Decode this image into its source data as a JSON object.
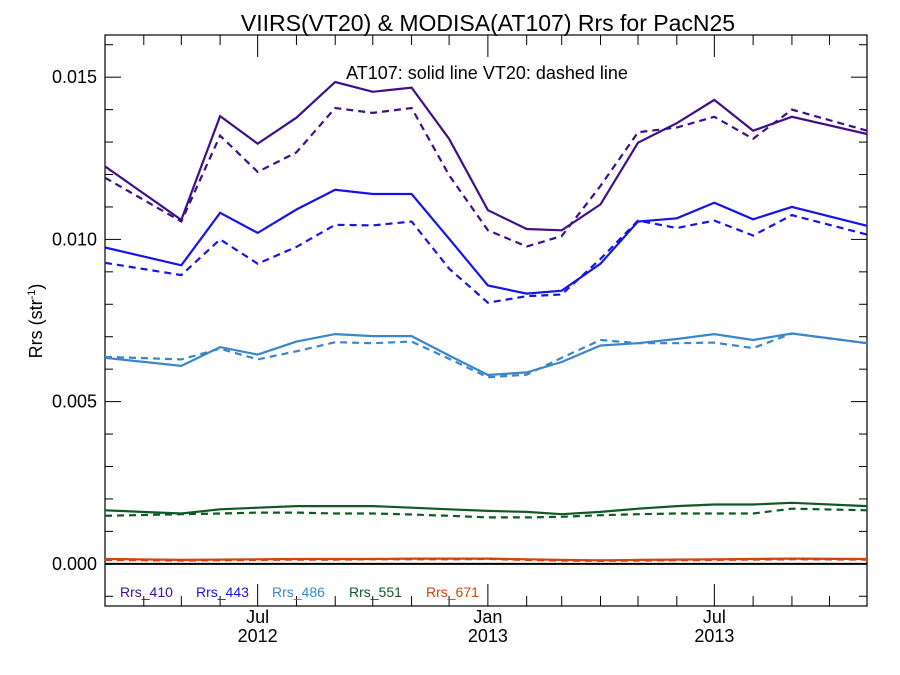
{
  "chart_data": {
    "type": "line",
    "title": "VIIRS(VT20) & MODISA(AT107)  Rrs for PacN25",
    "annotation": "AT107: solid line   VT20: dashed line",
    "xlabel": "",
    "ylabel_main": "Rrs (str",
    "ylabel_sup": "-1",
    "ylabel_close": ")",
    "ylim": [
      -0.0013,
      0.0163
    ],
    "y_ticks": [
      0.0,
      0.005,
      0.01,
      0.015
    ],
    "y_tick_labels": [
      "0.000",
      "0.005",
      "0.010",
      "0.015"
    ],
    "x_domain": [
      "2012-03-01",
      "2013-10-31"
    ],
    "x_major_ticks": [
      {
        "date": "2012-07-01",
        "label_top": "Jul",
        "label_bottom": "2012"
      },
      {
        "date": "2013-01-01",
        "label_top": "Jan",
        "label_bottom": "2013"
      },
      {
        "date": "2013-07-01",
        "label_top": "Jul",
        "label_bottom": "2013"
      }
    ],
    "x_minor_ticks": [
      "2012-04-01",
      "2012-05-01",
      "2012-06-01",
      "2012-08-01",
      "2012-09-01",
      "2012-10-01",
      "2012-11-01",
      "2012-12-01",
      "2013-02-01",
      "2013-03-01",
      "2013-04-01",
      "2013-05-01",
      "2013-06-01",
      "2013-08-01",
      "2013-09-01",
      "2013-10-01"
    ],
    "solid_style": "AT107 (MODISA)",
    "dashed_style": "VT20 (VIIRS)",
    "series": [
      {
        "name": "Rrs_410",
        "color": "#3f0f87",
        "x": [
          "2012-03-01",
          "2012-05-01",
          "2012-06-01",
          "2012-07-01",
          "2012-08-01",
          "2012-09-01",
          "2012-10-01",
          "2012-11-01",
          "2012-12-01",
          "2013-01-01",
          "2013-02-01",
          "2013-03-01",
          "2013-04-01",
          "2013-05-01",
          "2013-06-01",
          "2013-07-01",
          "2013-08-01",
          "2013-09-01",
          "2013-10-31"
        ],
        "solid": [
          0.01225,
          0.0106,
          0.0138,
          0.01295,
          0.01375,
          0.01485,
          0.01455,
          0.01468,
          0.0131,
          0.0109,
          0.01032,
          0.01028,
          0.01108,
          0.01298,
          0.01358,
          0.0143,
          0.01335,
          0.01378,
          0.01325
        ],
        "dashed": [
          0.0119,
          0.01055,
          0.0132,
          0.01208,
          0.01268,
          0.01405,
          0.0139,
          0.01405,
          0.01198,
          0.01028,
          0.00978,
          0.0101,
          0.01165,
          0.0133,
          0.01345,
          0.01378,
          0.0131,
          0.014,
          0.01335
        ]
      },
      {
        "name": "Rrs_443",
        "color": "#1515e8",
        "x": [
          "2012-03-01",
          "2012-05-01",
          "2012-06-01",
          "2012-07-01",
          "2012-08-01",
          "2012-09-01",
          "2012-10-01",
          "2012-11-01",
          "2012-12-01",
          "2013-01-01",
          "2013-02-01",
          "2013-03-01",
          "2013-04-01",
          "2013-05-01",
          "2013-06-01",
          "2013-07-01",
          "2013-08-01",
          "2013-09-01",
          "2013-10-31"
        ],
        "solid": [
          0.00975,
          0.0092,
          0.01082,
          0.0102,
          0.01092,
          0.01153,
          0.0114,
          0.0114,
          0.01002,
          0.00858,
          0.00833,
          0.00842,
          0.00925,
          0.01055,
          0.01065,
          0.01113,
          0.01062,
          0.011,
          0.01042
        ],
        "dashed": [
          0.00928,
          0.0089,
          0.01,
          0.00925,
          0.00977,
          0.01045,
          0.01043,
          0.01055,
          0.0091,
          0.00805,
          0.00825,
          0.0083,
          0.0094,
          0.01058,
          0.01035,
          0.01058,
          0.01012,
          0.01075,
          0.01015
        ]
      },
      {
        "name": "Rrs_486",
        "color": "#3a86c8",
        "x": [
          "2012-03-01",
          "2012-05-01",
          "2012-06-01",
          "2012-07-01",
          "2012-08-01",
          "2012-09-01",
          "2012-10-01",
          "2012-11-01",
          "2012-12-01",
          "2013-01-01",
          "2013-02-01",
          "2013-03-01",
          "2013-04-01",
          "2013-05-01",
          "2013-06-01",
          "2013-07-01",
          "2013-08-01",
          "2013-09-01",
          "2013-10-31"
        ],
        "solid": [
          0.00635,
          0.0061,
          0.00668,
          0.00645,
          0.00685,
          0.00708,
          0.00702,
          0.00702,
          0.00642,
          0.00582,
          0.0059,
          0.00622,
          0.00673,
          0.0068,
          0.00693,
          0.00708,
          0.0069,
          0.0071,
          0.0068
        ],
        "dashed": [
          0.00638,
          0.0063,
          0.00663,
          0.0063,
          0.00655,
          0.00683,
          0.0068,
          0.00685,
          0.00632,
          0.00575,
          0.00583,
          0.00635,
          0.0069,
          0.0068,
          0.0068,
          0.00682,
          0.00665,
          0.0071,
          0.0068
        ]
      },
      {
        "name": "Rrs_551",
        "color": "#0f5a24",
        "x": [
          "2012-03-01",
          "2012-05-01",
          "2012-06-01",
          "2012-07-01",
          "2012-08-01",
          "2012-09-01",
          "2012-10-01",
          "2012-11-01",
          "2012-12-01",
          "2013-01-01",
          "2013-02-01",
          "2013-03-01",
          "2013-04-01",
          "2013-05-01",
          "2013-06-01",
          "2013-07-01",
          "2013-08-01",
          "2013-09-01",
          "2013-10-31"
        ],
        "solid": [
          0.00165,
          0.00155,
          0.00168,
          0.00173,
          0.00178,
          0.00178,
          0.00178,
          0.00173,
          0.00168,
          0.00163,
          0.0016,
          0.00153,
          0.0016,
          0.0017,
          0.00178,
          0.00183,
          0.00183,
          0.00188,
          0.00178
        ],
        "dashed": [
          0.00148,
          0.00153,
          0.00155,
          0.00158,
          0.00158,
          0.00155,
          0.00155,
          0.00152,
          0.00148,
          0.00143,
          0.00143,
          0.00145,
          0.0015,
          0.00153,
          0.00155,
          0.00155,
          0.00155,
          0.0017,
          0.00165
        ]
      },
      {
        "name": "Rrs_671",
        "color": "#d4420e",
        "x": [
          "2012-03-01",
          "2012-05-01",
          "2012-06-01",
          "2012-07-01",
          "2012-08-01",
          "2012-09-01",
          "2012-10-01",
          "2012-11-01",
          "2012-12-01",
          "2013-01-01",
          "2013-02-01",
          "2013-03-01",
          "2013-04-01",
          "2013-05-01",
          "2013-06-01",
          "2013-07-01",
          "2013-08-01",
          "2013-09-01",
          "2013-10-31"
        ],
        "solid": [
          0.00015,
          0.00012,
          0.00013,
          0.00014,
          0.00015,
          0.00015,
          0.00015,
          0.00016,
          0.00016,
          0.00016,
          0.00014,
          0.00012,
          0.00011,
          0.00012,
          0.00013,
          0.00014,
          0.00015,
          0.00016,
          0.00015
        ],
        "dashed": [
          0.00012,
          0.0001,
          0.00011,
          0.00012,
          0.00013,
          0.00013,
          0.00014,
          0.00014,
          0.00014,
          0.00015,
          0.00012,
          0.0001,
          9e-05,
          0.0001,
          0.00011,
          0.00012,
          0.00013,
          0.00014,
          0.00013
        ]
      }
    ],
    "legend": [
      {
        "label": "Rrs_410",
        "color": "#3f0f87"
      },
      {
        "label": "Rrs_443",
        "color": "#1515e8"
      },
      {
        "label": "Rrs_486",
        "color": "#3a86c8"
      },
      {
        "label": "Rrs_551",
        "color": "#0f5a24"
      },
      {
        "label": "Rrs_671",
        "color": "#d4420e"
      }
    ],
    "legend_placement": "bottom-left",
    "grid": false
  }
}
